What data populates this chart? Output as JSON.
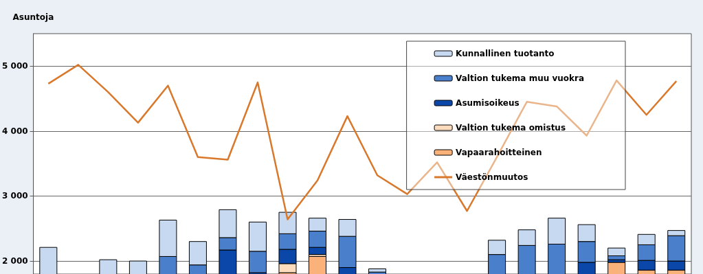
{
  "chart_data": {
    "type": "bar",
    "ylabel": "Asuntoja",
    "categories": [
      null,
      null,
      null,
      null,
      null,
      null,
      null,
      null,
      null,
      null,
      null,
      null,
      null,
      null,
      null,
      null,
      null,
      null,
      null,
      null,
      null,
      null
    ],
    "series": [
      {
        "name": "Vapaarahoitteinen",
        "color": "#fab27a",
        "values": [
          null,
          null,
          null,
          null,
          null,
          null,
          null,
          null,
          1820,
          2070,
          null,
          null,
          null,
          null,
          null,
          null,
          null,
          null,
          null,
          1980,
          1860,
          1860
        ],
        "base": [
          null,
          null,
          null,
          null,
          null,
          null,
          null,
          null,
          0,
          0,
          null,
          null,
          null,
          null,
          null,
          null,
          null,
          null,
          null,
          0,
          0,
          0
        ]
      },
      {
        "name": "Valtion tukema omistus",
        "color": "#fcdcbc",
        "values": [
          null,
          null,
          null,
          null,
          null,
          null,
          null,
          null,
          140,
          30,
          null,
          null,
          null,
          null,
          null,
          null,
          null,
          null,
          null,
          null,
          null,
          null
        ],
        "base": [
          null,
          null,
          null,
          null,
          null,
          null,
          null,
          null,
          1820,
          2070,
          null,
          null,
          null,
          null,
          null,
          null,
          null,
          null,
          null,
          null,
          null,
          null
        ]
      },
      {
        "name": "Asumisoikeus",
        "color": "#0b47a8",
        "values": [
          null,
          null,
          null,
          null,
          null,
          null,
          2170,
          1820,
          220,
          110,
          1900,
          null,
          null,
          null,
          null,
          null,
          null,
          null,
          1980,
          40,
          150,
          140
        ],
        "base": [
          null,
          null,
          null,
          null,
          null,
          null,
          0,
          0,
          1960,
          2100,
          0,
          null,
          null,
          null,
          null,
          null,
          null,
          null,
          0,
          1980,
          1860,
          1860
        ]
      },
      {
        "name": "Valtion tukema muu vuokra",
        "color": "#4a7fcc",
        "values": [
          null,
          null,
          null,
          null,
          2070,
          1940,
          190,
          330,
          240,
          250,
          480,
          1830,
          null,
          null,
          null,
          2100,
          2240,
          2260,
          320,
          60,
          240,
          390
        ],
        "base": [
          null,
          null,
          null,
          null,
          0,
          0,
          2170,
          1820,
          2180,
          2210,
          1900,
          0,
          null,
          null,
          null,
          0,
          0,
          0,
          1980,
          2020,
          2010,
          2000
        ]
      },
      {
        "name": "Kunnallinen tuotanto",
        "color": "#c6d9f1",
        "values": [
          2210,
          null,
          2020,
          2000,
          560,
          360,
          430,
          450,
          330,
          200,
          260,
          50,
          null,
          null,
          null,
          220,
          240,
          400,
          260,
          120,
          160,
          80
        ],
        "base": [
          0,
          null,
          0,
          0,
          2070,
          1940,
          2360,
          2150,
          2420,
          2460,
          2380,
          1830,
          null,
          null,
          null,
          2100,
          2240,
          2260,
          2300,
          2080,
          2250,
          2390
        ]
      },
      {
        "name": "Väestönmuutos",
        "type": "line",
        "color": "#d9782b",
        "values": [
          4730,
          5020,
          4600,
          4130,
          4700,
          3600,
          3560,
          4750,
          2640,
          3240,
          4230,
          3320,
          3030,
          3520,
          2770,
          3600,
          4450,
          4380,
          3930,
          4780,
          4250,
          4770
        ]
      }
    ],
    "ylim": [
      1800,
      5500
    ],
    "yticks": [
      {
        "value": 2000,
        "label": "2 000"
      },
      {
        "value": 3000,
        "label": "3 000"
      },
      {
        "value": 4000,
        "label": "4 000"
      },
      {
        "value": 5000,
        "label": "5 000"
      }
    ],
    "grid": "y",
    "legend": "top right",
    "tick_labels": "y",
    "marker": "none"
  }
}
